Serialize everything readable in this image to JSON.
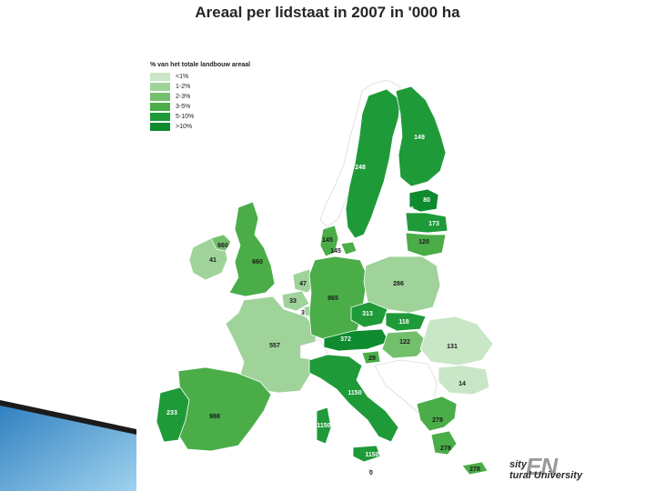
{
  "title": "Areaal per lidstaat in 2007 in '000 ha",
  "legend": {
    "title": "% van het totale landbouw areaal",
    "items": [
      {
        "label": "<1%",
        "color": "#c9e6c6"
      },
      {
        "label": "1-2%",
        "color": "#9fd39a"
      },
      {
        "label": "2-3%",
        "color": "#72bf6c"
      },
      {
        "label": "3-5%",
        "color": "#4aad48"
      },
      {
        "label": "5-10%",
        "color": "#1f9a39"
      },
      {
        "label": ">10%",
        "color": "#0e8a2f"
      }
    ]
  },
  "regions": [
    {
      "name": "ireland",
      "value": "41",
      "class": "1-2%"
    },
    {
      "name": "northern-ireland",
      "value": "660",
      "class": "2-3%"
    },
    {
      "name": "united-kingdom",
      "value": "660",
      "class": "3-5%"
    },
    {
      "name": "netherlands",
      "value": "47",
      "class": "1-2%"
    },
    {
      "name": "belgium",
      "value": "33",
      "class": "1-2%"
    },
    {
      "name": "luxembourg",
      "value": "3",
      "class": "1-2%"
    },
    {
      "name": "france",
      "value": "557",
      "class": "1-2%"
    },
    {
      "name": "germany",
      "value": "865",
      "class": "3-5%"
    },
    {
      "name": "denmark",
      "value": "145",
      "class": "3-5%"
    },
    {
      "name": "denmark-islands",
      "value": "145",
      "class": "3-5%"
    },
    {
      "name": "sweden",
      "value": "248",
      "class": "5-10%"
    },
    {
      "name": "finland",
      "value": "149",
      "class": "5-10%"
    },
    {
      "name": "estonia",
      "value": "80",
      "class": ">10%"
    },
    {
      "name": "estonia-islands",
      "value": "80",
      "class": ">10%"
    },
    {
      "name": "latvia",
      "value": "173",
      "class": "5-10%"
    },
    {
      "name": "lithuania",
      "value": "120",
      "class": "3-5%"
    },
    {
      "name": "poland",
      "value": "286",
      "class": "1-2%"
    },
    {
      "name": "czech-republic",
      "value": "313",
      "class": "5-10%"
    },
    {
      "name": "slovakia",
      "value": "118",
      "class": "5-10%"
    },
    {
      "name": "austria",
      "value": "372",
      "class": ">10%"
    },
    {
      "name": "slovenia",
      "value": "29",
      "class": "3-5%"
    },
    {
      "name": "hungary",
      "value": "122",
      "class": "2-3%"
    },
    {
      "name": "romania",
      "value": "131",
      "class": "<1%"
    },
    {
      "name": "bulgaria",
      "value": "14",
      "class": "<1%"
    },
    {
      "name": "italy",
      "value": "1150",
      "class": "5-10%"
    },
    {
      "name": "sardinia",
      "value": "1150",
      "class": "5-10%"
    },
    {
      "name": "sicily",
      "value": "1150",
      "class": "5-10%"
    },
    {
      "name": "malta",
      "value": "0",
      "class": "<1%"
    },
    {
      "name": "spain",
      "value": "988",
      "class": "3-5%"
    },
    {
      "name": "portugal",
      "value": "233",
      "class": "5-10%"
    },
    {
      "name": "greece",
      "value": "278",
      "class": "3-5%"
    },
    {
      "name": "greece-south",
      "value": "278",
      "class": "3-5%"
    },
    {
      "name": "cyprus",
      "value": "278",
      "class": "3-5%"
    }
  ],
  "logo": {
    "mark": "EN",
    "line1": "sity",
    "line2": "tural University"
  }
}
